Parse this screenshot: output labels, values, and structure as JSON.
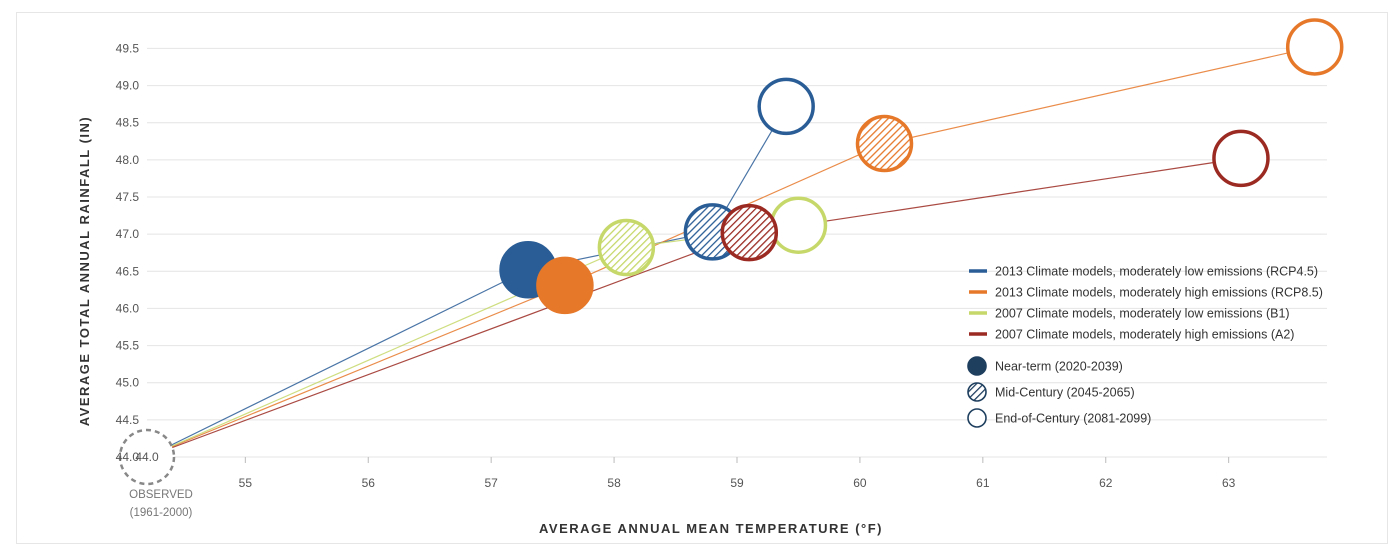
{
  "chart_data": {
    "type": "scatter",
    "xlabel": "AVERAGE ANNUAL MEAN TEMPERATURE (°F)",
    "ylabel": "AVERAGE TOTAL ANNUAL RAINFALL (IN)",
    "xlim": [
      54.2,
      63.8
    ],
    "ylim": [
      44.0,
      49.6
    ],
    "x_ticks": [
      "55",
      "56",
      "57",
      "58",
      "59",
      "60",
      "61",
      "62",
      "63"
    ],
    "y_ticks": [
      "44.0",
      "44.5",
      "45.0",
      "45.5",
      "46.0",
      "46.5",
      "47.0",
      "47.5",
      "48.0",
      "48.5",
      "49.0",
      "49.5"
    ],
    "grid": "horizontal",
    "observed": {
      "x": 54.2,
      "y": 44.0,
      "label": "OBSERVED",
      "period": "(1961-2000)"
    },
    "series": [
      {
        "name": "2013 Climate models, moderately low emissions (RCP4.5)",
        "color": "#2a5d96",
        "points": [
          {
            "period": "near",
            "x": 57.3,
            "y": 46.52
          },
          {
            "period": "mid",
            "x": 58.8,
            "y": 47.03
          },
          {
            "period": "end",
            "x": 59.4,
            "y": 48.72
          }
        ]
      },
      {
        "name": "2013 Climate models, moderately high emissions (RCP8.5)",
        "color": "#e6782a",
        "points": [
          {
            "period": "near",
            "x": 57.6,
            "y": 46.31
          },
          {
            "period": "mid",
            "x": 60.2,
            "y": 48.22
          },
          {
            "period": "end",
            "x": 63.7,
            "y": 49.52
          }
        ]
      },
      {
        "name": "2007 Climate models, moderately low emissions (B1)",
        "color": "#c6d86a",
        "points": [
          {
            "period": "mid",
            "x": 58.1,
            "y": 46.82
          },
          {
            "period": "end",
            "x": 59.5,
            "y": 47.12
          }
        ]
      },
      {
        "name": "2007 Climate models, moderately high emissions (A2)",
        "color": "#9b2a22",
        "points": [
          {
            "period": "mid",
            "x": 59.1,
            "y": 47.02
          },
          {
            "period": "end",
            "x": 63.1,
            "y": 48.02
          }
        ]
      }
    ],
    "markers": [
      {
        "period": "near",
        "label": "Near-term (2020-2039)"
      },
      {
        "period": "mid",
        "label": "Mid-Century (2045-2065)"
      },
      {
        "period": "end",
        "label": "End-of-Century (2081-2099)"
      }
    ],
    "legend_position": "bottom-right",
    "marker_color": "#1f3f5f"
  }
}
